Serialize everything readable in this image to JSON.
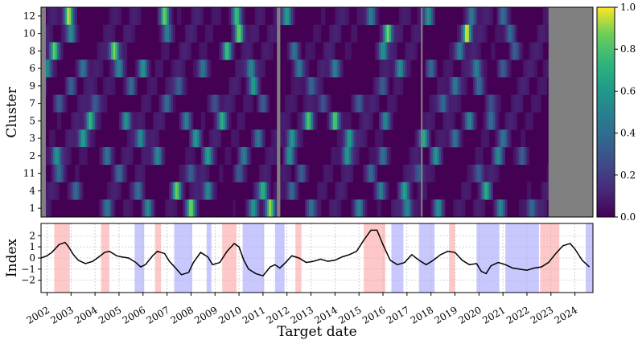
{
  "chart_data": [
    {
      "type": "heatmap",
      "ylabel": "Cluster",
      "y_categories": [
        "12",
        "10",
        "8",
        "6",
        "9",
        "7",
        "5",
        "3",
        "2",
        "11",
        "4",
        "1"
      ],
      "x_range": [
        2001.75,
        2024.75
      ],
      "missing_periods": [
        [
          2001.75,
          2001.95
        ],
        [
          2011.58,
          2011.72
        ],
        [
          2017.58,
          2017.65
        ],
        [
          2022.9,
          2024.75
        ]
      ],
      "colorbar": {
        "colormap": "viridis",
        "range": [
          0.0,
          1.0
        ],
        "ticks": [
          "0.0",
          "0.2",
          "0.4",
          "0.6",
          "0.8",
          "1.0"
        ],
        "tick_values": [
          0.0,
          0.2,
          0.4,
          0.6,
          0.8,
          1.0
        ]
      },
      "rows": [
        {
          "cluster": "12",
          "peaks": [
            [
              2002.9,
              0.9
            ],
            [
              2006.9,
              0.85
            ],
            [
              2009.9,
              0.75
            ],
            [
              2012.0,
              0.6
            ],
            [
              2015.5,
              0.45
            ],
            [
              2017.9,
              0.5
            ],
            [
              2019.7,
              0.4
            ],
            [
              2021.0,
              0.35
            ]
          ]
        },
        {
          "cluster": "10",
          "peaks": [
            [
              2003.0,
              0.5
            ],
            [
              2007.0,
              0.45
            ],
            [
              2010.0,
              0.85
            ],
            [
              2016.2,
              0.85
            ],
            [
              2019.5,
              0.95
            ],
            [
              2021.3,
              0.35
            ]
          ]
        },
        {
          "cluster": "8",
          "peaks": [
            [
              2002.3,
              0.8
            ],
            [
              2004.8,
              0.85
            ],
            [
              2009.5,
              0.75
            ],
            [
              2012.3,
              0.4
            ],
            [
              2016.0,
              0.55
            ],
            [
              2019.2,
              0.45
            ],
            [
              2021.5,
              0.3
            ]
          ]
        },
        {
          "cluster": "6",
          "peaks": [
            [
              2002.0,
              0.5
            ],
            [
              2003.5,
              0.4
            ],
            [
              2005.0,
              0.45
            ],
            [
              2006.0,
              0.55
            ],
            [
              2008.5,
              0.4
            ],
            [
              2010.5,
              0.5
            ],
            [
              2012.5,
              0.4
            ],
            [
              2014.0,
              0.45
            ],
            [
              2016.7,
              0.5
            ],
            [
              2018.0,
              0.35
            ],
            [
              2019.9,
              0.45
            ],
            [
              2021.0,
              0.3
            ]
          ]
        },
        {
          "cluster": "9",
          "peaks": [
            [
              2003.0,
              0.3
            ],
            [
              2005.5,
              0.35
            ],
            [
              2007.5,
              0.3
            ],
            [
              2010.6,
              0.55
            ],
            [
              2013.0,
              0.3
            ],
            [
              2016.0,
              0.25
            ],
            [
              2019.0,
              0.4
            ],
            [
              2020.0,
              0.35
            ]
          ]
        },
        {
          "cluster": "7",
          "peaks": [
            [
              2002.5,
              0.3
            ],
            [
              2004.0,
              0.3
            ],
            [
              2007.0,
              0.3
            ],
            [
              2009.0,
              0.25
            ],
            [
              2011.0,
              0.3
            ],
            [
              2013.5,
              0.25
            ],
            [
              2015.0,
              0.3
            ],
            [
              2018.5,
              0.35
            ],
            [
              2020.5,
              0.25
            ]
          ]
        },
        {
          "cluster": "5",
          "peaks": [
            [
              2003.8,
              0.7
            ],
            [
              2005.3,
              0.55
            ],
            [
              2007.8,
              0.45
            ],
            [
              2009.3,
              0.6
            ],
            [
              2012.9,
              0.75
            ],
            [
              2014.0,
              0.8
            ],
            [
              2016.1,
              0.45
            ],
            [
              2019.6,
              0.5
            ],
            [
              2020.5,
              0.35
            ]
          ]
        },
        {
          "cluster": "3",
          "peaks": [
            [
              2003.5,
              0.6
            ],
            [
              2005.9,
              0.5
            ],
            [
              2008.2,
              0.55
            ],
            [
              2010.8,
              0.4
            ],
            [
              2012.2,
              0.55
            ],
            [
              2014.6,
              0.6
            ],
            [
              2017.7,
              0.6
            ],
            [
              2019.0,
              0.4
            ],
            [
              2021.0,
              0.35
            ]
          ]
        },
        {
          "cluster": "2",
          "peaks": [
            [
              2002.4,
              0.55
            ],
            [
              2004.5,
              0.4
            ],
            [
              2006.6,
              0.5
            ],
            [
              2008.7,
              0.55
            ],
            [
              2010.2,
              0.45
            ],
            [
              2012.1,
              0.5
            ],
            [
              2014.5,
              0.55
            ],
            [
              2016.0,
              0.4
            ],
            [
              2018.2,
              0.5
            ],
            [
              2020.8,
              0.45
            ],
            [
              2021.8,
              0.3
            ]
          ]
        },
        {
          "cluster": "11",
          "peaks": [
            [
              2002.5,
              0.3
            ],
            [
              2005.0,
              0.3
            ],
            [
              2008.0,
              0.3
            ],
            [
              2010.0,
              0.3
            ],
            [
              2012.6,
              0.3
            ],
            [
              2015.5,
              0.35
            ],
            [
              2017.5,
              0.3
            ],
            [
              2020.0,
              0.3
            ]
          ]
        },
        {
          "cluster": "4",
          "peaks": [
            [
              2003.2,
              0.35
            ],
            [
              2005.8,
              0.35
            ],
            [
              2007.4,
              0.8
            ],
            [
              2008.7,
              0.5
            ],
            [
              2011.0,
              0.65
            ],
            [
              2012.2,
              0.35
            ],
            [
              2015.9,
              0.45
            ],
            [
              2016.9,
              0.55
            ],
            [
              2020.3,
              0.6
            ]
          ]
        },
        {
          "cluster": "1",
          "peaks": [
            [
              2004.5,
              0.35
            ],
            [
              2006.2,
              0.5
            ],
            [
              2008.0,
              0.8
            ],
            [
              2010.6,
              0.5
            ],
            [
              2011.3,
              0.85
            ],
            [
              2013.0,
              0.35
            ],
            [
              2015.0,
              0.5
            ],
            [
              2017.0,
              0.5
            ],
            [
              2018.3,
              0.55
            ],
            [
              2020.9,
              0.5
            ],
            [
              2022.2,
              0.35
            ]
          ]
        }
      ]
    },
    {
      "type": "line",
      "ylabel": "Index",
      "xlabel": "Target date",
      "x_range": [
        2001.75,
        2024.75
      ],
      "ylim": [
        -3.1,
        3.1
      ],
      "y_ticks": [
        -2,
        -1,
        0,
        1,
        2
      ],
      "x_ticks": [
        "2002",
        "2003",
        "2004",
        "2005",
        "2006",
        "2007",
        "2008",
        "2009",
        "2010",
        "2011",
        "2012",
        "2013",
        "2014",
        "2015",
        "2016",
        "2017",
        "2018",
        "2019",
        "2020",
        "2021",
        "2022",
        "2023",
        "2024"
      ],
      "grid": true,
      "series": [
        {
          "color": "#000000",
          "x": [
            2001.75,
            2002.0,
            2002.2,
            2002.5,
            2002.75,
            2002.9,
            2003.1,
            2003.3,
            2003.6,
            2003.9,
            2004.1,
            2004.4,
            2004.6,
            2004.9,
            2005.1,
            2005.4,
            2005.7,
            2005.9,
            2006.1,
            2006.4,
            2006.6,
            2006.9,
            2007.1,
            2007.4,
            2007.6,
            2007.9,
            2008.1,
            2008.4,
            2008.7,
            2008.9,
            2009.2,
            2009.5,
            2009.8,
            2010.0,
            2010.2,
            2010.4,
            2010.7,
            2011.0,
            2011.3,
            2011.5,
            2011.7,
            2011.9,
            2012.2,
            2012.5,
            2012.8,
            2013.1,
            2013.4,
            2013.7,
            2014.0,
            2014.3,
            2014.6,
            2014.9,
            2015.2,
            2015.5,
            2015.75,
            2016.0,
            2016.3,
            2016.6,
            2016.9,
            2017.2,
            2017.5,
            2017.8,
            2018.1,
            2018.4,
            2018.7,
            2019.0,
            2019.3,
            2019.6,
            2019.9,
            2020.1,
            2020.3,
            2020.5,
            2020.8,
            2021.1,
            2021.4,
            2021.7,
            2022.0,
            2022.3,
            2022.6,
            2022.9,
            2023.2,
            2023.5,
            2023.8,
            2024.0,
            2024.3,
            2024.6
          ],
          "y": [
            0.0,
            0.2,
            0.5,
            1.2,
            1.4,
            1.0,
            0.3,
            -0.2,
            -0.5,
            -0.3,
            0.0,
            0.5,
            0.6,
            0.2,
            0.1,
            0.0,
            -0.4,
            -0.8,
            -0.6,
            0.2,
            0.6,
            0.4,
            -0.3,
            -1.0,
            -1.5,
            -1.3,
            -0.4,
            0.5,
            0.1,
            -0.6,
            -0.4,
            0.6,
            1.3,
            1.0,
            -0.2,
            -1.0,
            -1.4,
            -1.6,
            -0.8,
            -0.6,
            -0.9,
            -0.5,
            0.2,
            0.0,
            -0.4,
            -0.3,
            -0.1,
            -0.3,
            -0.2,
            0.1,
            0.3,
            0.6,
            1.6,
            2.5,
            2.5,
            1.2,
            -0.2,
            -0.6,
            -0.4,
            0.3,
            -0.2,
            -0.6,
            -0.2,
            0.3,
            0.6,
            0.5,
            -0.2,
            -0.6,
            -0.5,
            -1.2,
            -1.4,
            -0.7,
            -0.4,
            -0.6,
            -0.9,
            -1.0,
            -1.1,
            -0.9,
            -0.8,
            -0.4,
            0.4,
            1.1,
            1.3,
            0.8,
            -0.2,
            -0.8
          ]
        }
      ],
      "shaded_regions": [
        {
          "start": 2002.3,
          "end": 2002.95,
          "color": "#ffc8c8"
        },
        {
          "start": 2004.25,
          "end": 2004.6,
          "color": "#ffc8c8"
        },
        {
          "start": 2005.65,
          "end": 2006.05,
          "color": "#c8c8ff"
        },
        {
          "start": 2006.5,
          "end": 2006.75,
          "color": "#ffc8c8"
        },
        {
          "start": 2007.3,
          "end": 2008.05,
          "color": "#c8c8ff"
        },
        {
          "start": 2008.65,
          "end": 2008.85,
          "color": "#c8c8ff"
        },
        {
          "start": 2009.3,
          "end": 2009.9,
          "color": "#ffc8c8"
        },
        {
          "start": 2010.15,
          "end": 2011.05,
          "color": "#c8c8ff"
        },
        {
          "start": 2011.5,
          "end": 2011.9,
          "color": "#c8c8ff"
        },
        {
          "start": 2012.35,
          "end": 2012.6,
          "color": "#ffc8c8"
        },
        {
          "start": 2015.2,
          "end": 2016.1,
          "color": "#ffc8c8"
        },
        {
          "start": 2016.35,
          "end": 2016.85,
          "color": "#c8c8ff"
        },
        {
          "start": 2017.5,
          "end": 2018.15,
          "color": "#c8c8ff"
        },
        {
          "start": 2018.75,
          "end": 2019.0,
          "color": "#ffc8c8"
        },
        {
          "start": 2019.9,
          "end": 2020.85,
          "color": "#c8c8ff"
        },
        {
          "start": 2021.1,
          "end": 2022.5,
          "color": "#c8c8ff"
        },
        {
          "start": 2022.55,
          "end": 2023.35,
          "color": "#ffc8c8"
        },
        {
          "start": 2024.45,
          "end": 2024.75,
          "color": "#c8c8ff"
        }
      ]
    }
  ]
}
